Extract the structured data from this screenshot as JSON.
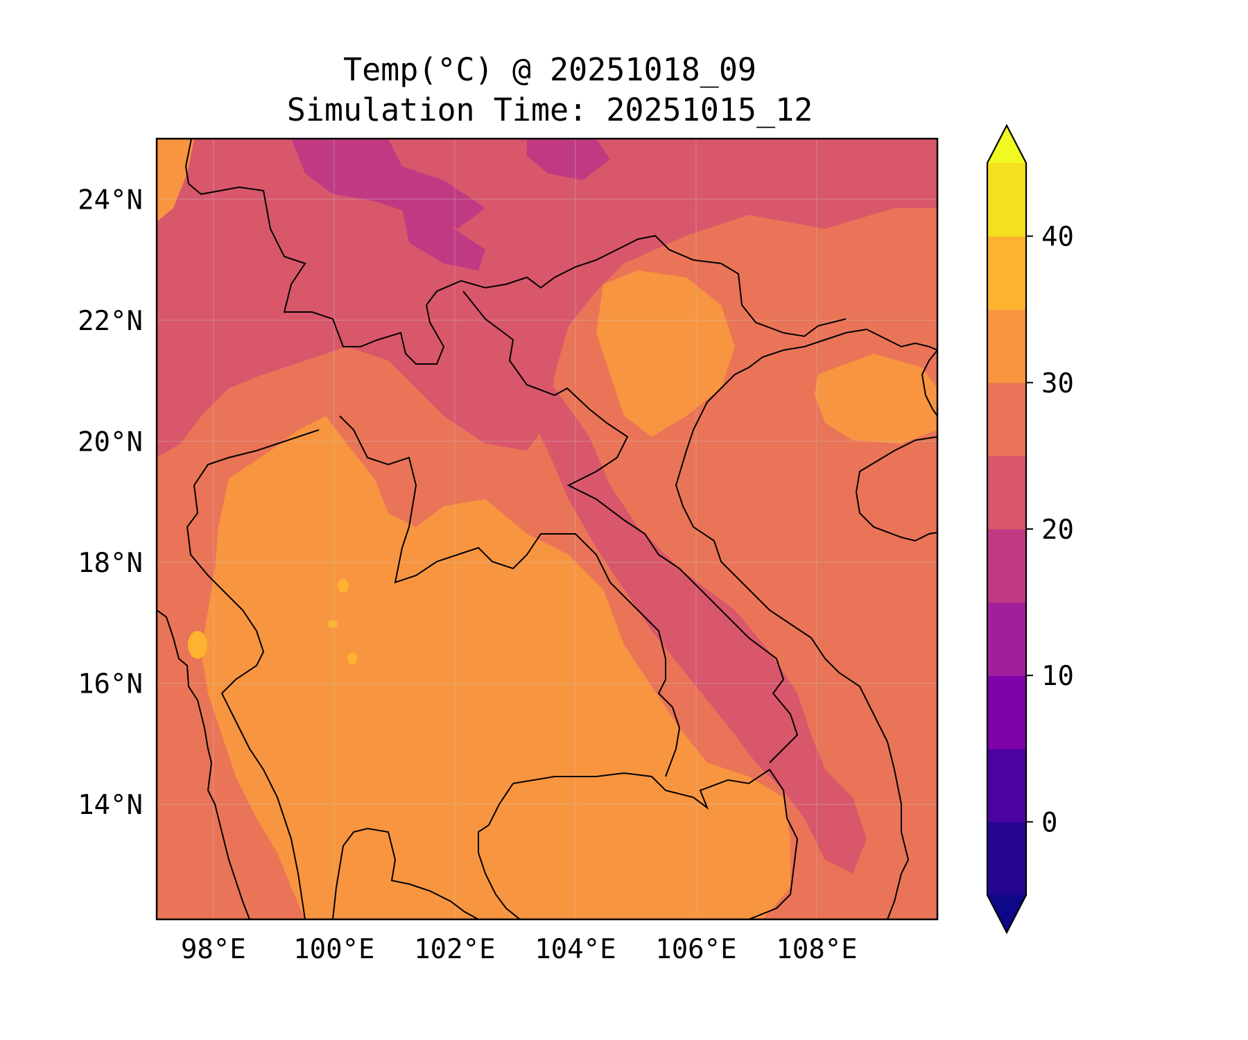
{
  "title": {
    "line1": "Temp(°C) @ 20251018_09",
    "line2": "Simulation Time: 20251015_12"
  },
  "map": {
    "projection": "PlateCarree",
    "lon_range": [
      97.06,
      110.0
    ],
    "lat_range": [
      12.1,
      25.0
    ],
    "grid": true,
    "variable": "Temp",
    "unit": "°C"
  },
  "x_ticks": [
    {
      "value": 98,
      "label": "98°E"
    },
    {
      "value": 100,
      "label": "100°E"
    },
    {
      "value": 102,
      "label": "102°E"
    },
    {
      "value": 104,
      "label": "104°E"
    },
    {
      "value": 106,
      "label": "106°E"
    },
    {
      "value": 108,
      "label": "108°E"
    }
  ],
  "y_ticks": [
    {
      "value": 24,
      "label": "24°N"
    },
    {
      "value": 22,
      "label": "22°N"
    },
    {
      "value": 20,
      "label": "20°N"
    },
    {
      "value": 18,
      "label": "18°N"
    },
    {
      "value": 16,
      "label": "16°N"
    },
    {
      "value": 14,
      "label": "14°N"
    }
  ],
  "colorbar": {
    "extend": "both",
    "min": -5,
    "max": 45,
    "levels": [
      -5,
      0,
      5,
      10,
      15,
      20,
      25,
      30,
      35,
      40,
      45
    ],
    "colors": [
      "#250690",
      "#4c02a1",
      "#7e03a8",
      "#a21f9b",
      "#c03a83",
      "#d8576b",
      "#ea7457",
      "#f89540",
      "#fdb32f",
      "#f4e020"
    ],
    "under_color": "#0d0887",
    "over_color": "#f0f921",
    "ticks": [
      {
        "value": 0,
        "label": "0"
      },
      {
        "value": 10,
        "label": "10"
      },
      {
        "value": 20,
        "label": "20"
      },
      {
        "value": 30,
        "label": "30"
      },
      {
        "value": 40,
        "label": "40"
      }
    ]
  }
}
